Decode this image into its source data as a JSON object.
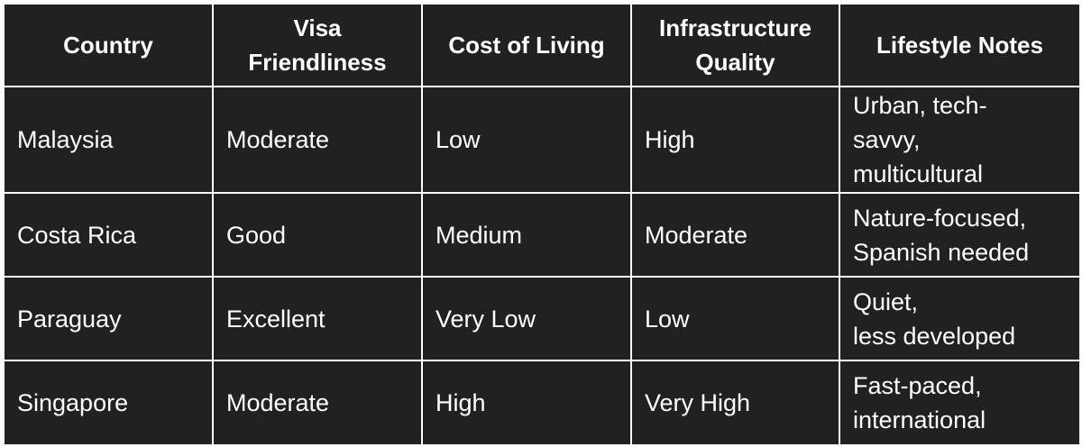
{
  "table": {
    "headers": [
      "Country",
      "Visa\nFriendliness",
      "Cost of Living",
      "Infrastructure\nQuality",
      "Lifestyle Notes"
    ],
    "rows": [
      [
        "Malaysia",
        "Moderate",
        "Low",
        "High",
        "Urban, tech-\nsavvy,\nmulticultural"
      ],
      [
        "Costa Rica",
        "Good",
        "Medium",
        "Moderate",
        "Nature-focused,\nSpanish needed"
      ],
      [
        "Paraguay",
        "Excellent",
        "Very Low",
        "Low",
        "Quiet,\nless developed"
      ],
      [
        "Singapore",
        "Moderate",
        "High",
        "Very High",
        "Fast-paced,\ninternational"
      ]
    ]
  },
  "colors": {
    "cell_background": "#222021",
    "text": "#ffffff",
    "border": "#ffffff"
  }
}
